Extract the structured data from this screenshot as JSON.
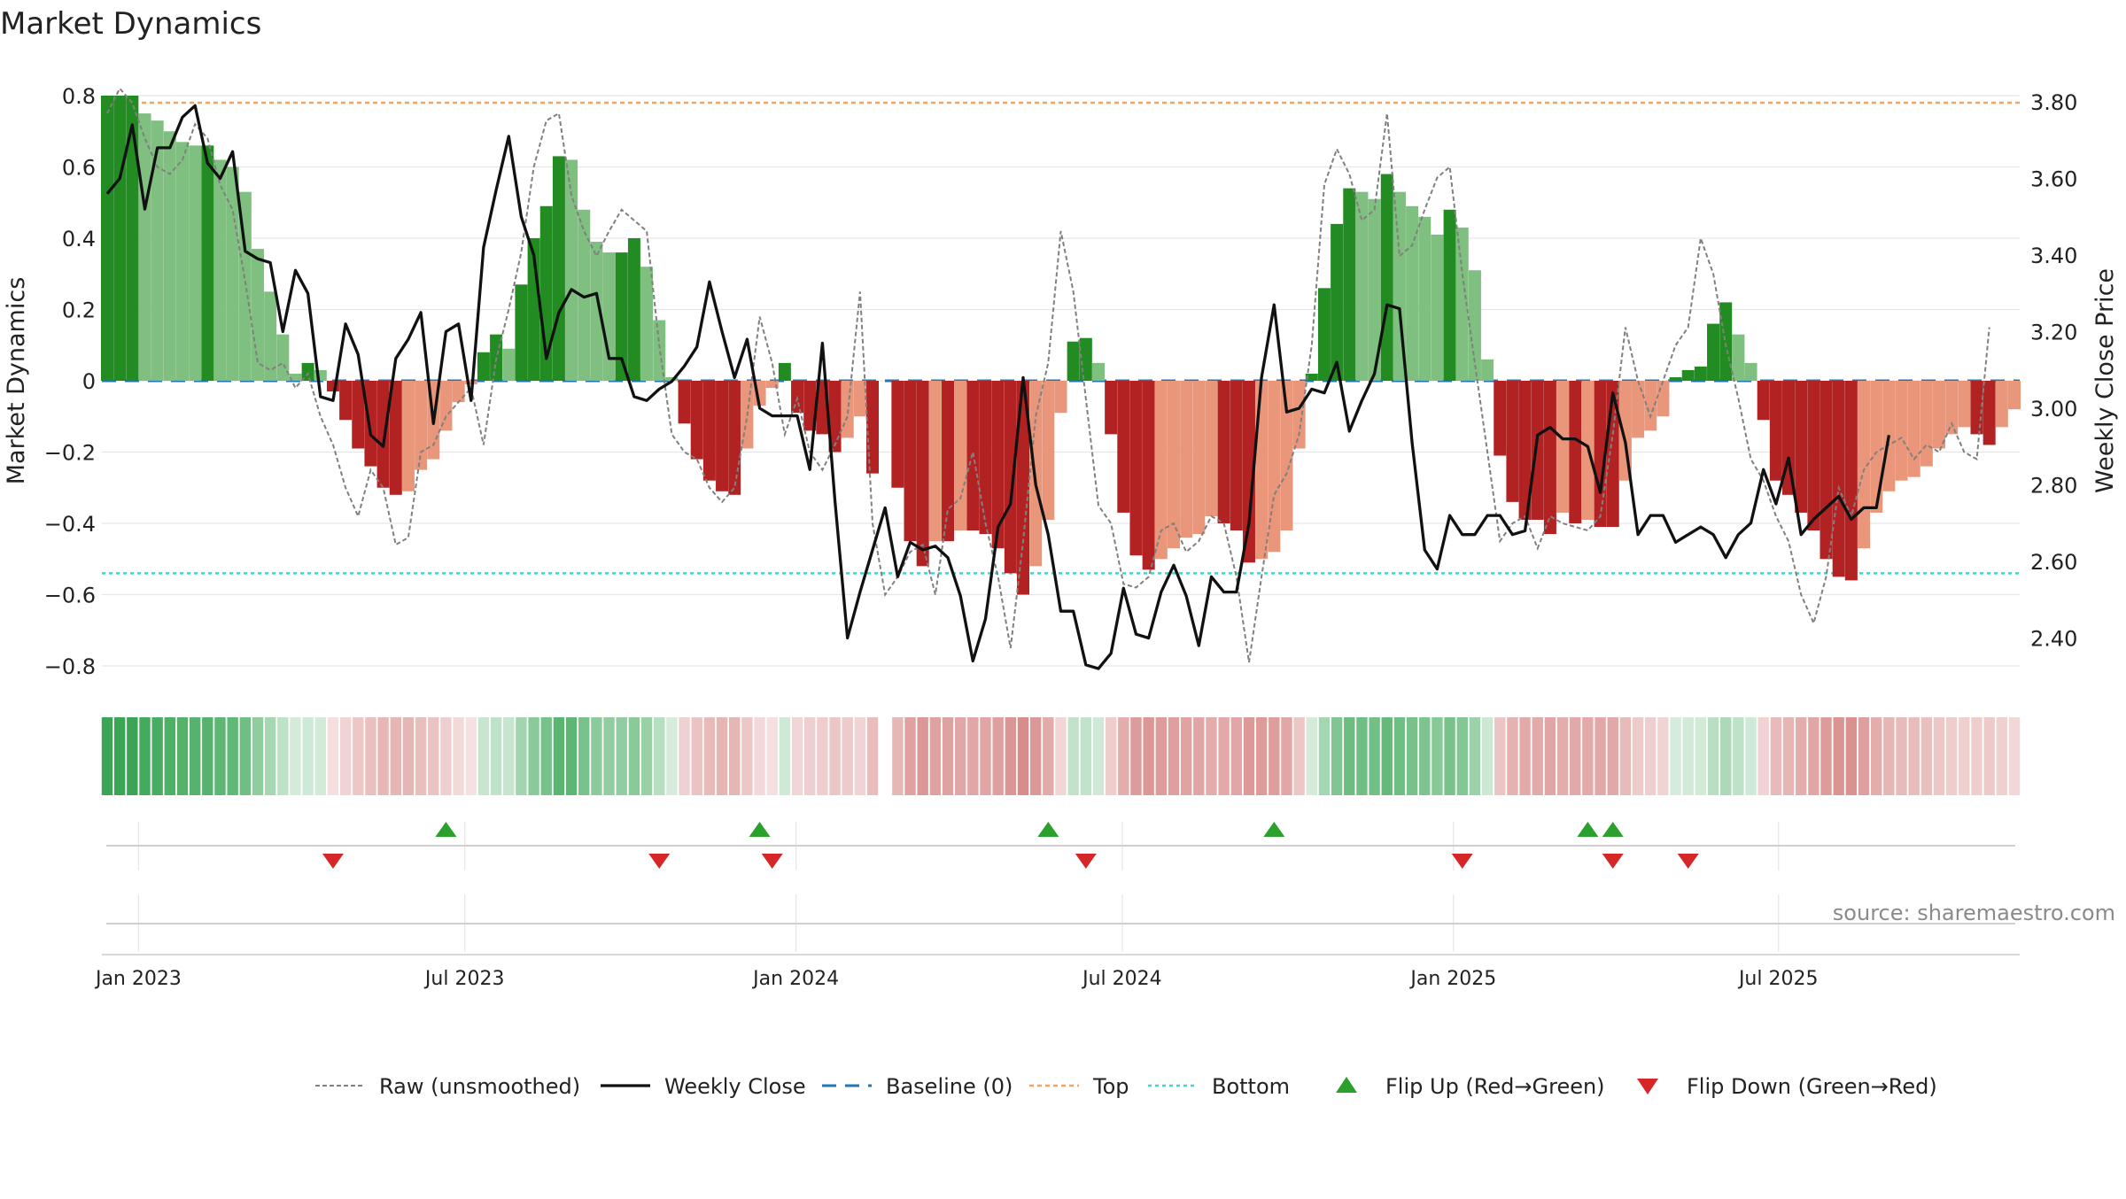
{
  "chart_data": {
    "type": "bar",
    "title": "Market Dynamics",
    "ylabel_left": "Market Dynamics",
    "ylabel_right": "Weekly Close Price",
    "ylim_left": [
      -0.85,
      0.85
    ],
    "ylim_right": [
      2.28,
      3.88
    ],
    "left_ticks": [
      0.8,
      0.6,
      0.4,
      0.2,
      0,
      -0.2,
      -0.4,
      -0.6,
      -0.8
    ],
    "left_tick_labels": [
      "0.8",
      "0.6",
      "0.4",
      "0.2",
      "0",
      "−0.2",
      "−0.4",
      "−0.6",
      "−0.8"
    ],
    "right_ticks": [
      3.8,
      3.6,
      3.4,
      3.2,
      3.0,
      2.8,
      2.6,
      2.4
    ],
    "right_tick_labels": [
      "3.80",
      "3.60",
      "3.40",
      "3.20",
      "3.00",
      "2.80",
      "2.60",
      "2.40"
    ],
    "x_ticks": [
      {
        "label": "Jan 2023",
        "week": 2.5
      },
      {
        "label": "Jul 2023",
        "week": 28.5
      },
      {
        "label": "Jan 2024",
        "week": 54.9
      },
      {
        "label": "Jul 2024",
        "week": 80.9
      },
      {
        "label": "Jan 2025",
        "week": 107.3
      },
      {
        "label": "Jul 2025",
        "week": 133.2
      }
    ],
    "top_line": 0.78,
    "bottom_line": -0.54,
    "baseline": 0,
    "bar_values": [
      0.8,
      0.8,
      0.8,
      0.75,
      0.73,
      0.7,
      0.67,
      0.66,
      0.66,
      0.62,
      0.6,
      0.53,
      0.37,
      0.25,
      0.13,
      0.02,
      0.05,
      0.03,
      -0.03,
      -0.11,
      -0.19,
      -0.24,
      -0.3,
      -0.32,
      -0.31,
      -0.25,
      -0.22,
      -0.14,
      -0.06,
      -0.01,
      0.08,
      0.13,
      0.09,
      0.27,
      0.4,
      0.49,
      0.63,
      0.62,
      0.48,
      0.39,
      0.36,
      0.36,
      0.4,
      0.32,
      0.17,
      0.01,
      -0.12,
      -0.22,
      -0.28,
      -0.31,
      -0.32,
      -0.19,
      -0.07,
      -0.02,
      0.05,
      -0.09,
      -0.14,
      -0.15,
      -0.2,
      -0.16,
      -0.1,
      -0.26,
      0,
      -0.3,
      -0.45,
      -0.52,
      -0.45,
      -0.45,
      -0.42,
      -0.42,
      -0.43,
      -0.47,
      -0.54,
      -0.6,
      -0.52,
      -0.39,
      -0.09,
      0.11,
      0.12,
      0.05,
      -0.15,
      -0.37,
      -0.49,
      -0.53,
      -0.5,
      -0.47,
      -0.44,
      -0.43,
      -0.38,
      -0.4,
      -0.42,
      -0.51,
      -0.5,
      -0.48,
      -0.42,
      -0.19,
      0.02,
      0.26,
      0.44,
      0.54,
      0.53,
      0.51,
      0.58,
      0.53,
      0.49,
      0.46,
      0.41,
      0.48,
      0.43,
      0.31,
      0.06,
      -0.21,
      -0.34,
      -0.39,
      -0.39,
      -0.43,
      -0.37,
      -0.4,
      -0.39,
      -0.41,
      -0.41,
      -0.28,
      -0.16,
      -0.14,
      -0.1,
      0.01,
      0.03,
      0.04,
      0.16,
      0.22,
      0.13,
      0.05,
      -0.11,
      -0.28,
      -0.32,
      -0.37,
      -0.42,
      -0.5,
      -0.55,
      -0.56,
      -0.47,
      -0.37,
      -0.31,
      -0.28,
      -0.27,
      -0.24,
      -0.19,
      -0.15,
      -0.13,
      -0.15,
      -0.18,
      -0.13,
      -0.08
    ],
    "raw_values": [
      0.75,
      0.82,
      0.78,
      0.68,
      0.6,
      0.58,
      0.62,
      0.72,
      0.68,
      0.55,
      0.48,
      0.28,
      0.05,
      0.03,
      0.05,
      -0.02,
      0.02,
      -0.1,
      -0.18,
      -0.3,
      -0.38,
      -0.25,
      -0.3,
      -0.46,
      -0.44,
      -0.2,
      -0.18,
      -0.1,
      -0.06,
      -0.02,
      -0.18,
      0.06,
      0.2,
      0.36,
      0.6,
      0.73,
      0.75,
      0.52,
      0.42,
      0.35,
      0.42,
      0.48,
      0.45,
      0.42,
      0.1,
      -0.15,
      -0.2,
      -0.22,
      -0.3,
      -0.34,
      -0.3,
      -0.1,
      0.18,
      0.05,
      -0.15,
      -0.05,
      -0.2,
      -0.25,
      -0.18,
      -0.1,
      0.25,
      -0.4,
      -0.6,
      -0.55,
      -0.48,
      -0.46,
      -0.6,
      -0.36,
      -0.33,
      -0.2,
      -0.4,
      -0.55,
      -0.75,
      -0.45,
      -0.1,
      0.05,
      0.42,
      0.25,
      -0.05,
      -0.35,
      -0.4,
      -0.57,
      -0.58,
      -0.55,
      -0.42,
      -0.4,
      -0.48,
      -0.45,
      -0.38,
      -0.4,
      -0.55,
      -0.79,
      -0.55,
      -0.32,
      -0.26,
      -0.15,
      0.1,
      0.55,
      0.65,
      0.58,
      0.45,
      0.48,
      0.75,
      0.35,
      0.38,
      0.48,
      0.57,
      0.6,
      0.3,
      0.05,
      -0.2,
      -0.45,
      -0.4,
      -0.38,
      -0.47,
      -0.38,
      -0.4,
      -0.41,
      -0.42,
      -0.38,
      -0.15,
      0.15,
      0.0,
      -0.1,
      0.0,
      0.1,
      0.15,
      0.4,
      0.3,
      0.1,
      -0.05,
      -0.22,
      -0.28,
      -0.38,
      -0.45,
      -0.6,
      -0.68,
      -0.55,
      -0.3,
      -0.38,
      -0.25,
      -0.2,
      -0.18,
      -0.16,
      -0.22,
      -0.18,
      -0.2,
      -0.12,
      -0.2,
      -0.22,
      0.15
    ],
    "close_values": [
      3.56,
      3.6,
      3.74,
      3.52,
      3.68,
      3.68,
      3.76,
      3.79,
      3.64,
      3.6,
      3.67,
      3.41,
      3.39,
      3.38,
      3.2,
      3.36,
      3.3,
      3.03,
      3.02,
      3.22,
      3.14,
      2.93,
      2.9,
      3.13,
      3.18,
      3.25,
      2.96,
      3.2,
      3.22,
      3.02,
      3.42,
      3.57,
      3.71,
      3.5,
      3.4,
      3.13,
      3.25,
      3.31,
      3.29,
      3.3,
      3.13,
      3.13,
      3.03,
      3.02,
      3.05,
      3.07,
      3.11,
      3.16,
      3.33,
      3.2,
      3.08,
      3.18,
      3.0,
      2.98,
      2.98,
      2.98,
      2.84,
      3.17,
      2.76,
      2.4,
      2.52,
      2.63,
      2.74,
      2.56,
      2.65,
      2.63,
      2.64,
      2.61,
      2.51,
      2.34,
      2.45,
      2.69,
      2.75,
      3.08,
      2.8,
      2.67,
      2.47,
      2.47,
      2.33,
      2.32,
      2.36,
      2.53,
      2.41,
      2.4,
      2.52,
      2.59,
      2.51,
      2.38,
      2.56,
      2.52,
      2.52,
      2.7,
      3.08,
      3.27,
      2.99,
      3.0,
      3.05,
      3.04,
      3.12,
      2.94,
      3.02,
      3.09,
      3.27,
      3.26,
      2.91,
      2.63,
      2.58,
      2.72,
      2.67,
      2.67,
      2.72,
      2.72,
      2.67,
      2.68,
      2.93,
      2.95,
      2.92,
      2.92,
      2.9,
      2.78,
      3.04,
      2.91,
      2.67,
      2.72,
      2.72,
      2.65,
      2.67,
      2.69,
      2.67,
      2.61,
      2.67,
      2.7,
      2.84,
      2.75,
      2.87,
      2.67,
      2.71,
      2.74,
      2.77,
      2.71,
      2.74,
      2.74,
      2.93
    ],
    "signal_strip": {
      "start_week": 0,
      "missing_weeks": [
        62
      ],
      "note": "one colored cell per week, shaded from the bar values"
    },
    "flip_up_weeks": [
      27,
      52,
      75,
      93,
      118,
      120
    ],
    "flip_down_weeks": [
      18,
      44,
      53,
      78,
      108,
      120,
      126
    ],
    "legend": [
      {
        "key": "raw",
        "label": "Raw (unsmoothed)"
      },
      {
        "key": "close",
        "label": "Weekly Close"
      },
      {
        "key": "baseline",
        "label": "Baseline (0)"
      },
      {
        "key": "top",
        "label": "Top"
      },
      {
        "key": "bottom",
        "label": "Bottom"
      },
      {
        "key": "flipup",
        "label": "Flip Up (Red→Green)"
      },
      {
        "key": "flipdown",
        "label": "Flip Down (Green→Red)"
      }
    ],
    "source_text": "source: sharemaestro.com",
    "legend_position": "bottom-center",
    "grid": true
  },
  "colors": {
    "pos_strong": "#228b22",
    "pos_light": "#7fbf7f",
    "neg_strong": "#b22222",
    "neg_light": "#e9967a",
    "strip_green": "#3aa655",
    "strip_red": "#c9605e",
    "close_line": "#111111",
    "raw_line": "#808080",
    "baseline": "#1f77b4",
    "top": "#f4a460",
    "bottom": "#48d1cc",
    "flip_up": "#2ca02c",
    "flip_down": "#d62728",
    "grid": "#e6e6e6",
    "source": "#8a8a8a"
  }
}
